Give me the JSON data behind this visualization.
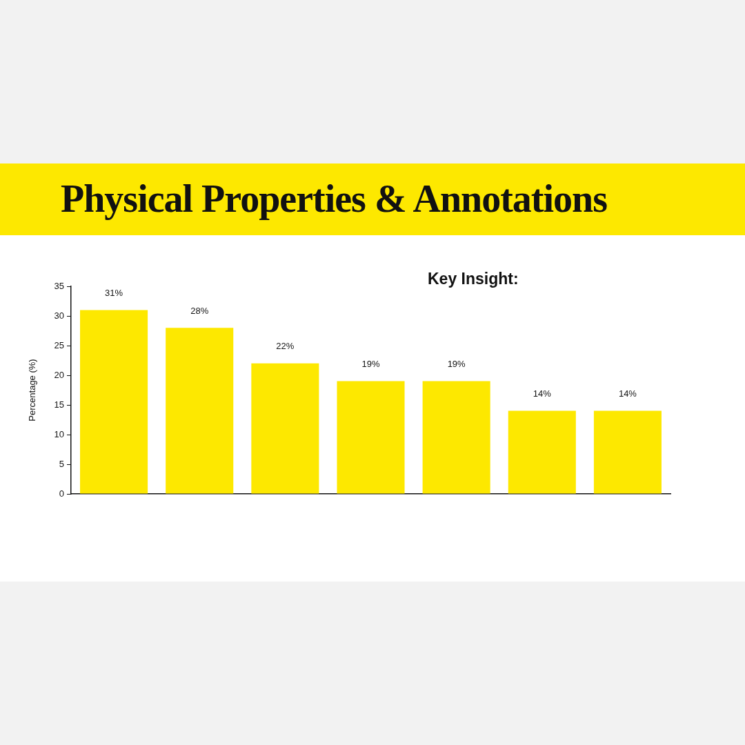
{
  "chart_data": {
    "type": "bar",
    "title": "Physical Properties & Annotations",
    "ylabel": "Percentage (%)",
    "categories": [
      null,
      null,
      null,
      null,
      null,
      null,
      null
    ],
    "values": [
      31,
      28,
      22,
      19,
      19,
      14,
      14
    ],
    "color": "#fde800",
    "value_labels": [
      "31%",
      "28%",
      "22%",
      "19%",
      "19%",
      "14%",
      "14%"
    ],
    "ylim": [
      0,
      35
    ],
    "yticks": [
      0,
      5,
      10,
      15,
      20,
      25,
      30,
      35
    ],
    "annotations": [
      "Key Insight:"
    ]
  }
}
